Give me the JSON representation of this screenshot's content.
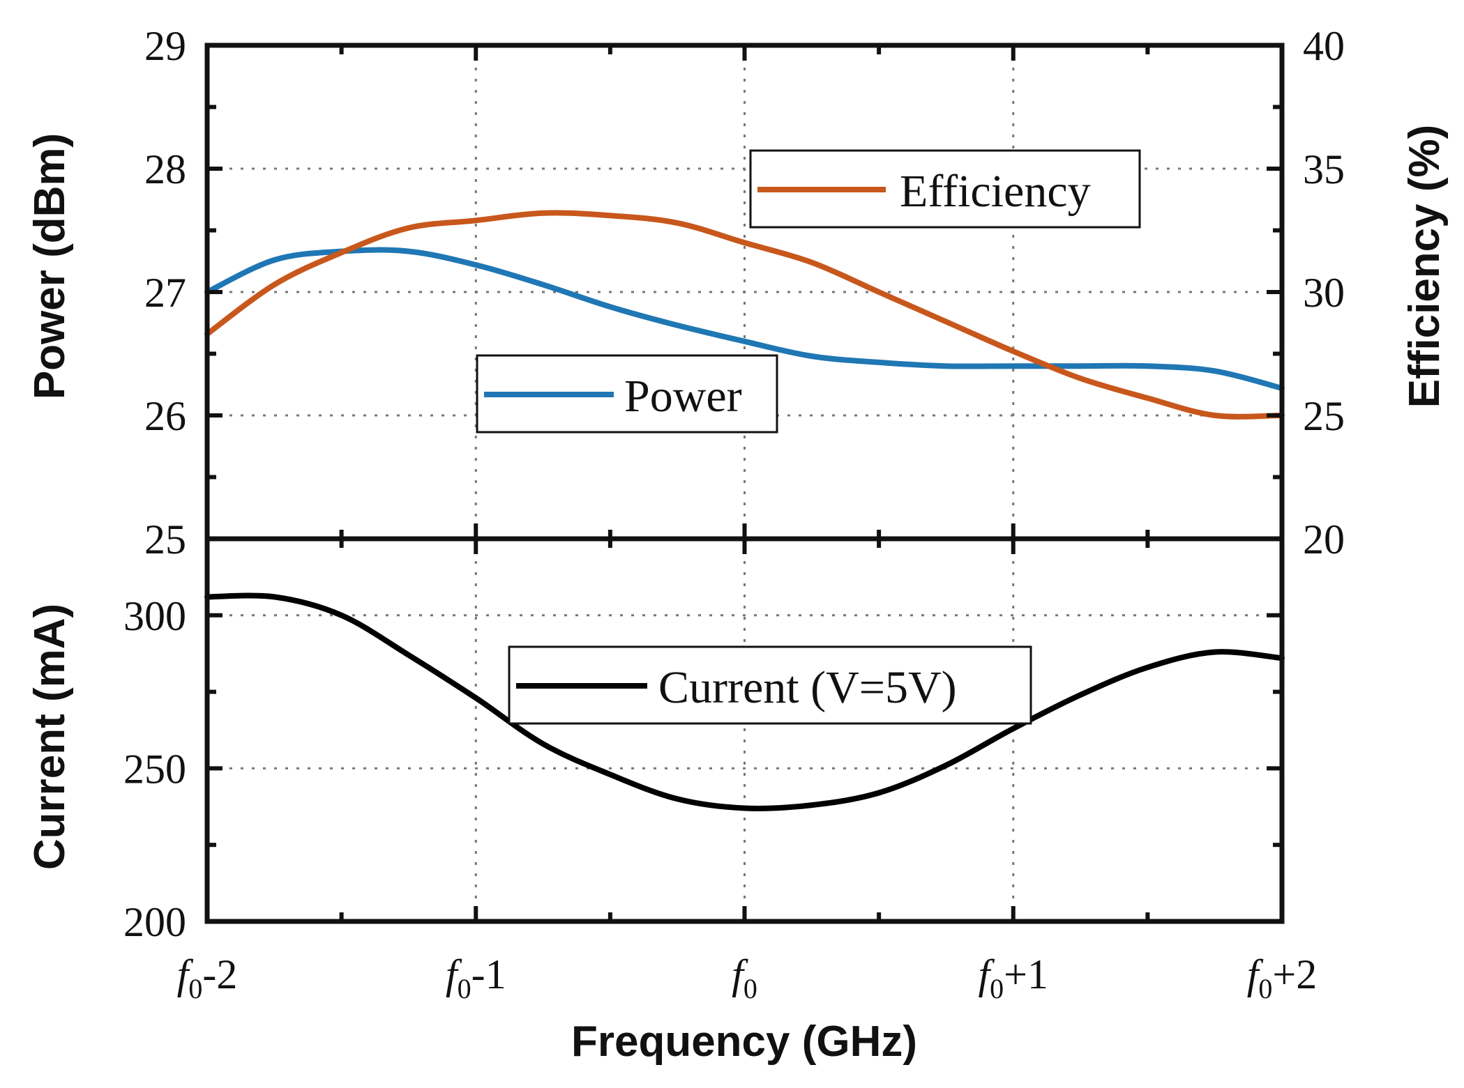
{
  "chart_data": [
    {
      "type": "line",
      "panel": "top",
      "x_categories": [
        "-2",
        "-1",
        "0",
        "+1",
        "+2"
      ],
      "x_label": "Frequency (GHz)",
      "x_tick_labels": [
        {
          "base": "f",
          "sub": "0",
          "suffix": "-2"
        },
        {
          "base": "f",
          "sub": "0",
          "suffix": "-1"
        },
        {
          "base": "f",
          "sub": "0",
          "suffix": ""
        },
        {
          "base": "f",
          "sub": "0",
          "suffix": "+1"
        },
        {
          "base": "f",
          "sub": "0",
          "suffix": "+2"
        }
      ],
      "xlim": [
        -2,
        2
      ],
      "y_left": {
        "label": "Power (dBm)",
        "ylim": [
          25,
          29
        ],
        "ticks": [
          "25",
          "26",
          "27",
          "28",
          "29"
        ]
      },
      "y_right": {
        "label": "Efficiency (%)",
        "ylim": [
          20,
          40
        ],
        "ticks": [
          "20",
          "25",
          "30",
          "35",
          "40"
        ]
      },
      "grid": true,
      "series": [
        {
          "name": "Power",
          "axis": "left",
          "color": "#1f77b4",
          "x": [
            -2.0,
            -1.75,
            -1.5,
            -1.25,
            -1.0,
            -0.75,
            -0.5,
            -0.25,
            0.0,
            0.25,
            0.5,
            0.75,
            1.0,
            1.25,
            1.5,
            1.75,
            2.0
          ],
          "y": [
            27.0,
            27.26,
            27.33,
            27.33,
            27.22,
            27.06,
            26.88,
            26.73,
            26.6,
            26.48,
            26.43,
            26.4,
            26.4,
            26.4,
            26.4,
            26.36,
            26.22
          ]
        },
        {
          "name": "Efficiency",
          "axis": "right",
          "color": "#c8571c",
          "x": [
            -2.0,
            -1.75,
            -1.5,
            -1.25,
            -1.0,
            -0.75,
            -0.5,
            -0.25,
            0.0,
            0.25,
            0.5,
            0.75,
            1.0,
            1.25,
            1.5,
            1.75,
            2.0
          ],
          "y": [
            28.3,
            30.3,
            31.6,
            32.6,
            32.9,
            33.2,
            33.1,
            32.8,
            32.0,
            31.2,
            30.0,
            28.8,
            27.6,
            26.5,
            25.7,
            25.0,
            25.0
          ]
        }
      ]
    },
    {
      "type": "line",
      "panel": "bottom",
      "xlim": [
        -2,
        2
      ],
      "y_left": {
        "label": "Current (mA)",
        "ylim": [
          200,
          325
        ],
        "ticks": [
          "200",
          "250",
          "300"
        ]
      },
      "grid": true,
      "series": [
        {
          "name": "Current (V=5V)",
          "axis": "left",
          "color": "#000000",
          "x": [
            -2.0,
            -1.75,
            -1.5,
            -1.25,
            -1.0,
            -0.75,
            -0.5,
            -0.25,
            0.0,
            0.25,
            0.5,
            0.75,
            1.0,
            1.25,
            1.5,
            1.75,
            2.0
          ],
          "y": [
            306,
            306,
            300,
            287,
            273,
            258,
            248,
            240,
            237,
            238,
            242,
            251,
            263,
            274,
            283,
            288,
            286
          ]
        }
      ]
    }
  ]
}
